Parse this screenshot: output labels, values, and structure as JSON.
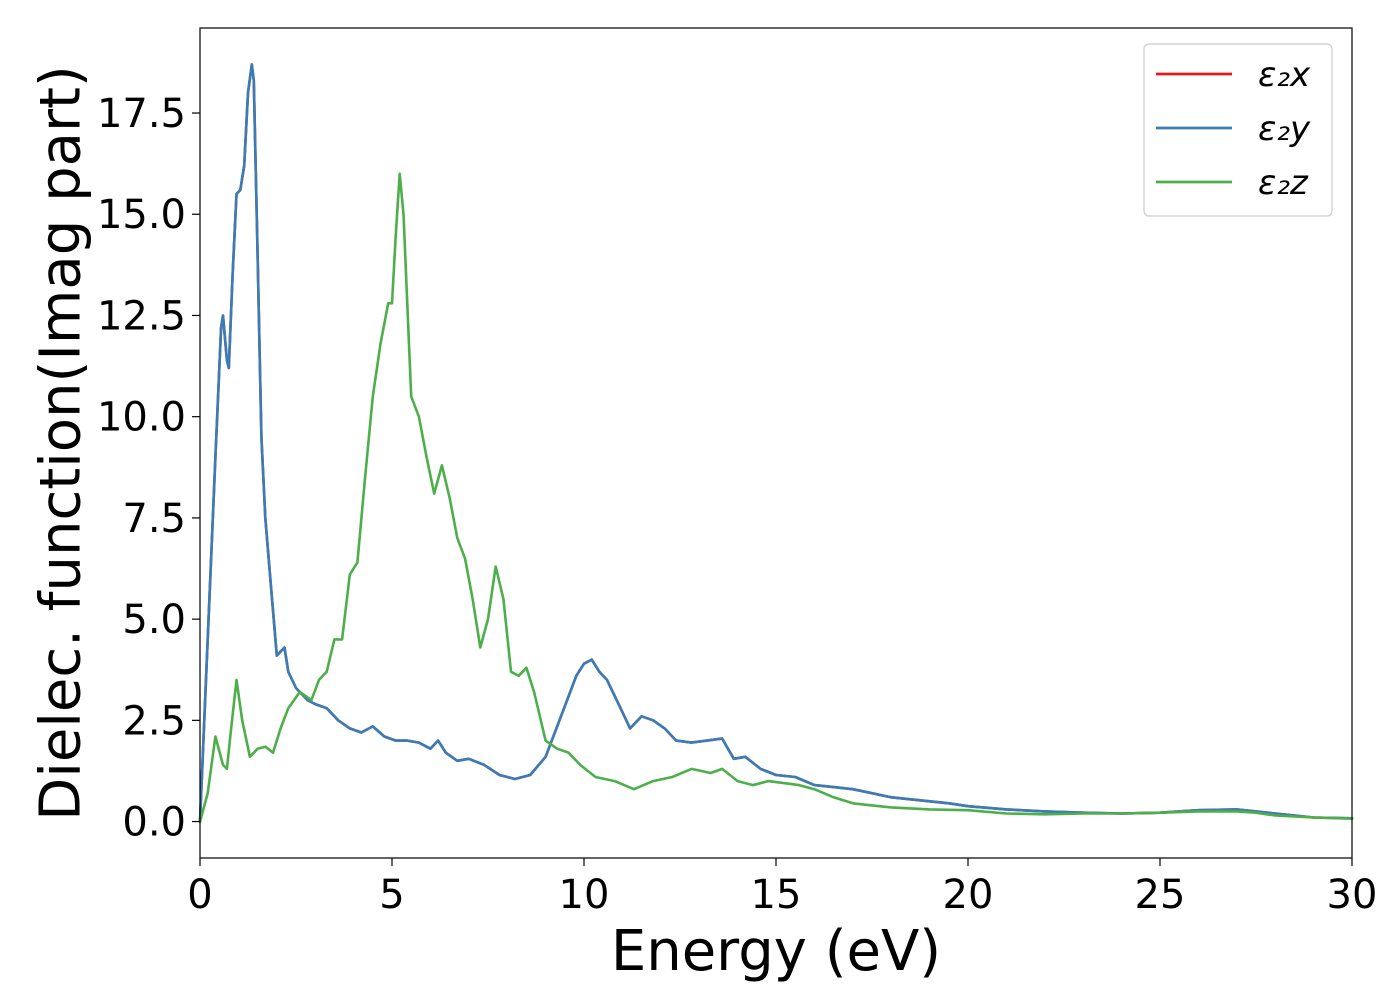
{
  "chart_data": {
    "type": "line",
    "title": "",
    "xlabel": "Energy (eV)",
    "ylabel": "Dielec. function(Imag part)",
    "xlim": [
      0,
      30
    ],
    "ylim": [
      -0.9,
      19.6
    ],
    "xticks": [
      0,
      5,
      10,
      15,
      20,
      25,
      30
    ],
    "xtick_labels": [
      "0",
      "5",
      "10",
      "15",
      "20",
      "25",
      "30"
    ],
    "yticks": [
      0,
      2.5,
      5,
      7.5,
      10,
      12.5,
      15,
      17.5
    ],
    "ytick_labels": [
      "0.0",
      "2.5",
      "5.0",
      "7.5",
      "10.0",
      "12.5",
      "15.0",
      "17.5"
    ],
    "grid": false,
    "legend_position": "top-right",
    "series": [
      {
        "name": "ε₂x",
        "color": "#e41a1c",
        "visible": false,
        "x": [
          0,
          0.2,
          0.4,
          0.55,
          0.6,
          0.7,
          0.75,
          0.85,
          0.95,
          1.05,
          1.15,
          1.25,
          1.35,
          1.4,
          1.5,
          1.6,
          1.7,
          1.85,
          2.0,
          2.1,
          2.2,
          2.3,
          2.5,
          2.8,
          3.0,
          3.3,
          3.6,
          3.9,
          4.2,
          4.5,
          4.8,
          5.1,
          5.4,
          5.7,
          6.0,
          6.2,
          6.4,
          6.7,
          7.0,
          7.4,
          7.8,
          8.2,
          8.6,
          9.0,
          9.4,
          9.8,
          10.0,
          10.2,
          10.4,
          10.6,
          10.9,
          11.2,
          11.5,
          11.8,
          12.1,
          12.4,
          12.8,
          13.2,
          13.6,
          13.9,
          14.2,
          14.6,
          15.0,
          15.5,
          16.0,
          16.5,
          17.0,
          17.5,
          18.0,
          18.5,
          19.0,
          19.5,
          20.0,
          21.0,
          22.0,
          23.0,
          24.0,
          25.0,
          26.0,
          27.0,
          27.5,
          28.0,
          28.5,
          29.0,
          30.0
        ],
        "y": [
          0,
          4.5,
          9.0,
          12.2,
          12.5,
          11.4,
          11.2,
          13.5,
          15.5,
          15.6,
          16.2,
          18.0,
          18.7,
          18.3,
          14.0,
          9.5,
          7.5,
          5.8,
          4.1,
          4.2,
          4.3,
          3.7,
          3.3,
          3.0,
          2.9,
          2.8,
          2.5,
          2.3,
          2.2,
          2.35,
          2.1,
          2.0,
          2.0,
          1.95,
          1.8,
          2.0,
          1.7,
          1.5,
          1.55,
          1.4,
          1.15,
          1.05,
          1.15,
          1.6,
          2.6,
          3.6,
          3.9,
          4.0,
          3.7,
          3.5,
          2.9,
          2.3,
          2.6,
          2.5,
          2.3,
          2.0,
          1.95,
          2.0,
          2.05,
          1.55,
          1.6,
          1.3,
          1.15,
          1.1,
          0.9,
          0.85,
          0.8,
          0.7,
          0.6,
          0.55,
          0.5,
          0.45,
          0.38,
          0.3,
          0.25,
          0.22,
          0.2,
          0.22,
          0.28,
          0.3,
          0.25,
          0.2,
          0.15,
          0.1,
          0.08
        ]
      },
      {
        "name": "ε₂y",
        "color": "#377eb8",
        "visible": true,
        "x": [
          0,
          0.2,
          0.4,
          0.55,
          0.6,
          0.7,
          0.75,
          0.85,
          0.95,
          1.05,
          1.15,
          1.25,
          1.35,
          1.4,
          1.5,
          1.6,
          1.7,
          1.85,
          2.0,
          2.1,
          2.2,
          2.3,
          2.5,
          2.8,
          3.0,
          3.3,
          3.6,
          3.9,
          4.2,
          4.5,
          4.8,
          5.1,
          5.4,
          5.7,
          6.0,
          6.2,
          6.4,
          6.7,
          7.0,
          7.4,
          7.8,
          8.2,
          8.6,
          9.0,
          9.4,
          9.8,
          10.0,
          10.2,
          10.4,
          10.6,
          10.9,
          11.2,
          11.5,
          11.8,
          12.1,
          12.4,
          12.8,
          13.2,
          13.6,
          13.9,
          14.2,
          14.6,
          15.0,
          15.5,
          16.0,
          16.5,
          17.0,
          17.5,
          18.0,
          18.5,
          19.0,
          19.5,
          20.0,
          21.0,
          22.0,
          23.0,
          24.0,
          25.0,
          26.0,
          27.0,
          27.5,
          28.0,
          28.5,
          29.0,
          30.0
        ],
        "y": [
          0,
          4.5,
          9.0,
          12.2,
          12.5,
          11.4,
          11.2,
          13.5,
          15.5,
          15.6,
          16.2,
          18.0,
          18.7,
          18.3,
          14.0,
          9.5,
          7.5,
          5.8,
          4.1,
          4.2,
          4.3,
          3.7,
          3.3,
          3.0,
          2.9,
          2.8,
          2.5,
          2.3,
          2.2,
          2.35,
          2.1,
          2.0,
          2.0,
          1.95,
          1.8,
          2.0,
          1.7,
          1.5,
          1.55,
          1.4,
          1.15,
          1.05,
          1.15,
          1.6,
          2.6,
          3.6,
          3.9,
          4.0,
          3.7,
          3.5,
          2.9,
          2.3,
          2.6,
          2.5,
          2.3,
          2.0,
          1.95,
          2.0,
          2.05,
          1.55,
          1.6,
          1.3,
          1.15,
          1.1,
          0.9,
          0.85,
          0.8,
          0.7,
          0.6,
          0.55,
          0.5,
          0.45,
          0.38,
          0.3,
          0.25,
          0.22,
          0.2,
          0.22,
          0.28,
          0.3,
          0.25,
          0.2,
          0.15,
          0.1,
          0.08
        ]
      },
      {
        "name": "ε₂z",
        "color": "#4daf4a",
        "visible": true,
        "x": [
          0,
          0.2,
          0.4,
          0.6,
          0.7,
          0.8,
          0.95,
          1.1,
          1.3,
          1.5,
          1.7,
          1.9,
          2.1,
          2.3,
          2.6,
          2.9,
          3.1,
          3.3,
          3.5,
          3.7,
          3.9,
          4.1,
          4.3,
          4.5,
          4.7,
          4.9,
          5.0,
          5.1,
          5.2,
          5.3,
          5.5,
          5.7,
          5.9,
          6.1,
          6.3,
          6.5,
          6.7,
          6.9,
          7.1,
          7.3,
          7.5,
          7.7,
          7.9,
          8.1,
          8.3,
          8.5,
          8.7,
          9.0,
          9.3,
          9.6,
          9.9,
          10.3,
          10.8,
          11.3,
          11.8,
          12.3,
          12.8,
          13.3,
          13.6,
          14.0,
          14.4,
          14.8,
          15.2,
          15.6,
          16.0,
          16.5,
          17.0,
          17.5,
          18.0,
          19.0,
          20.0,
          21.0,
          22.0,
          23.0,
          24.0,
          25.0,
          26.0,
          27.0,
          27.5,
          28.0,
          29.0,
          30.0
        ],
        "y": [
          0,
          0.7,
          2.1,
          1.4,
          1.3,
          2.2,
          3.5,
          2.5,
          1.6,
          1.8,
          1.85,
          1.7,
          2.3,
          2.8,
          3.2,
          3.0,
          3.5,
          3.7,
          4.5,
          4.5,
          6.1,
          6.4,
          8.5,
          10.5,
          11.8,
          12.8,
          12.8,
          14.5,
          16.0,
          15.0,
          10.5,
          10.0,
          9.0,
          8.1,
          8.8,
          8.0,
          7.0,
          6.5,
          5.5,
          4.3,
          5.0,
          6.3,
          5.5,
          3.7,
          3.6,
          3.8,
          3.2,
          2.0,
          1.8,
          1.7,
          1.4,
          1.1,
          1.0,
          0.8,
          1.0,
          1.1,
          1.3,
          1.2,
          1.3,
          1.0,
          0.9,
          1.0,
          0.95,
          0.9,
          0.8,
          0.6,
          0.45,
          0.4,
          0.35,
          0.3,
          0.28,
          0.2,
          0.18,
          0.2,
          0.2,
          0.22,
          0.25,
          0.25,
          0.22,
          0.15,
          0.1,
          0.07
        ]
      }
    ]
  }
}
